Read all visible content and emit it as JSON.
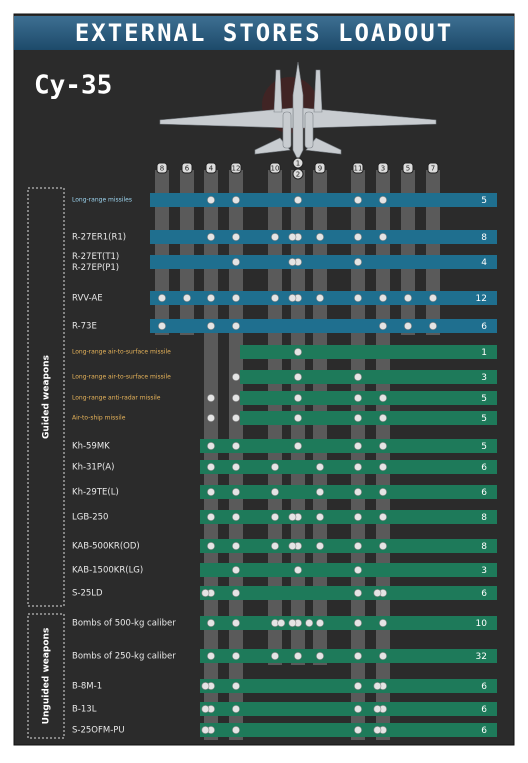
{
  "header": {
    "title": "EXTERNAL STORES LOADOUT",
    "aircraft": "Су-35"
  },
  "stations": [
    "8",
    "6",
    "4",
    "12",
    "10",
    [
      "1",
      "2"
    ],
    "9",
    "11",
    "3",
    "5",
    "7"
  ],
  "groups": [
    {
      "label": "Guided weapons",
      "rows": [
        {
          "name": "Long-range missiles",
          "count": "5",
          "color": "#1f6f8f"
        },
        {
          "name": "R-27ER1(R1)",
          "count": "8",
          "color": "#1f6f8f"
        },
        {
          "name": [
            "R-27ET(T1)",
            "R-27EP(P1)"
          ],
          "count": "4",
          "color": "#1f6f8f"
        },
        {
          "name": "RVV-AE",
          "count": "12",
          "color": "#1f6f8f"
        },
        {
          "name": "R-73E",
          "count": "6",
          "color": "#1f6f8f"
        },
        {
          "name": "Long-range air-to-surface missile",
          "count": "1",
          "color": "#1e7a5a"
        },
        {
          "name": "Long-range air-to-surface missile",
          "count": "3",
          "color": "#1e7a5a"
        },
        {
          "name": "Long-range anti-radar missile",
          "count": "5",
          "color": "#1e7a5a"
        },
        {
          "name": "Air-to-ship missile",
          "count": "5",
          "color": "#1e7a5a"
        },
        {
          "name": "Kh-59MK",
          "count": "5",
          "color": "#1e7a5a"
        },
        {
          "name": "Kh-31P(A)",
          "count": "6",
          "color": "#1e7a5a"
        },
        {
          "name": "Kh-29TE(L)",
          "count": "6",
          "color": "#1e7a5a"
        },
        {
          "name": "LGB-250",
          "count": "8",
          "color": "#1e7a5a"
        },
        {
          "name": "KAB-500KR(OD)",
          "count": "8",
          "color": "#1e7a5a"
        },
        {
          "name": "KAB-1500KR(LG)",
          "count": "3",
          "color": "#1e7a5a"
        },
        {
          "name": "S-25LD",
          "count": "6",
          "color": "#1e7a5a"
        }
      ]
    },
    {
      "label": "Unguided weapons",
      "rows": [
        {
          "name": "Bombs of 500-kg caliber",
          "count": "10",
          "color": "#1e7a5a"
        },
        {
          "name": "Bombs of 250-kg caliber",
          "count": "32",
          "color": "#1e7a5a"
        },
        {
          "name": "B-8M-1",
          "count": "6",
          "color": "#1e7a5a"
        },
        {
          "name": "B-13L",
          "count": "6",
          "color": "#1e7a5a"
        },
        {
          "name": "S-25OFM-PU",
          "count": "6",
          "color": "#1e7a5a"
        }
      ]
    }
  ]
}
